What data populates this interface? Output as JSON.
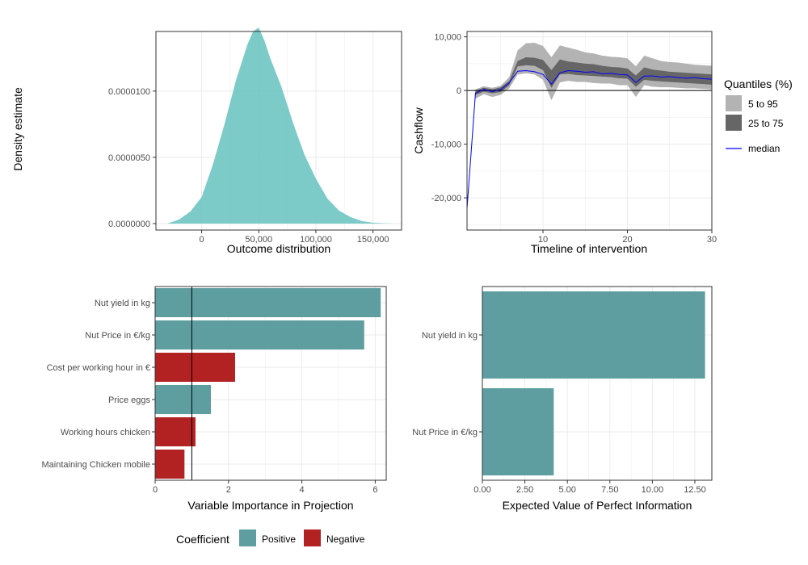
{
  "chart_data": [
    {
      "type": "area",
      "xlabel": "Outcome distribution",
      "ylabel": "Density estimate",
      "xlim": [
        -40000,
        175000
      ],
      "ylim": [
        0,
        1.45e-05
      ],
      "x_ticks": [
        0,
        50000,
        100000,
        150000
      ],
      "x_tick_labels": [
        "0",
        "50,000",
        "100,000",
        "150,000"
      ],
      "y_ticks": [
        0,
        5e-06,
        1e-05
      ],
      "y_tick_labels": [
        "0.0000000",
        "0.0000050",
        "0.0000100"
      ],
      "x": [
        -30000,
        -20000,
        -10000,
        0,
        10000,
        20000,
        30000,
        40000,
        45000,
        50000,
        55000,
        60000,
        70000,
        80000,
        90000,
        100000,
        110000,
        120000,
        130000,
        140000,
        150000,
        160000,
        168000
      ],
      "y": [
        0,
        3e-07,
        9e-07,
        2e-06,
        4.5e-06,
        7.5e-06,
        1.08e-05,
        1.35e-05,
        1.45e-05,
        1.48e-05,
        1.38e-05,
        1.25e-05,
        1.03e-05,
        7.6e-06,
        5.2e-06,
        3.4e-06,
        1.9e-06,
        1e-06,
        5e-07,
        2e-07,
        6e-08,
        2e-08,
        0
      ],
      "color": "#66c2c0"
    },
    {
      "type": "area",
      "xlabel": "Timeline of intervention",
      "ylabel": "Cashflow",
      "xlim": [
        1,
        30
      ],
      "ylim": [
        -26000,
        11000
      ],
      "x_ticks": [
        10,
        20,
        30
      ],
      "x_tick_labels": [
        "10",
        "20",
        "30"
      ],
      "y_ticks": [
        -20000,
        -10000,
        0,
        10000
      ],
      "y_tick_labels": [
        "-20,000",
        "-10,000",
        "0",
        "10,000"
      ],
      "legend_title": "Quantiles (%)",
      "legend_position": "right",
      "x": [
        1,
        2,
        3,
        4,
        5,
        6,
        7,
        8,
        9,
        10,
        11,
        12,
        13,
        14,
        15,
        16,
        17,
        18,
        19,
        20,
        21,
        22,
        23,
        24,
        25,
        26,
        27,
        28,
        29,
        30
      ],
      "series": [
        {
          "name": "5 to 95",
          "lower": [
            -22000,
            -1500,
            -700,
            -1200,
            -800,
            400,
            3000,
            3200,
            3000,
            2000,
            -1800,
            1500,
            1800,
            1600,
            1600,
            1400,
            1300,
            1300,
            1000,
            1000,
            -1200,
            1000,
            700,
            600,
            600,
            500,
            400,
            400,
            300,
            200
          ],
          "upper": [
            -22000,
            200,
            800,
            500,
            900,
            2500,
            7500,
            8800,
            8900,
            8300,
            6200,
            8400,
            8000,
            7600,
            7100,
            6900,
            6500,
            6300,
            6200,
            6000,
            4500,
            6500,
            6000,
            5500,
            5300,
            5200,
            5000,
            4800,
            4700,
            4600
          ],
          "color": "#b3b3b3"
        },
        {
          "name": "25 to 75",
          "lower": [
            -22000,
            -800,
            -200,
            -500,
            -300,
            1000,
            4500,
            4700,
            4600,
            3800,
            500,
            3000,
            3100,
            2900,
            2800,
            2700,
            2600,
            2500,
            2300,
            2200,
            700,
            2000,
            1800,
            1700,
            1600,
            1500,
            1400,
            1300,
            1200,
            1100
          ],
          "upper": [
            -22000,
            0,
            500,
            200,
            600,
            1800,
            5500,
            6200,
            6100,
            5700,
            3800,
            5800,
            5400,
            5200,
            5000,
            4900,
            4600,
            4400,
            4300,
            4100,
            2800,
            4300,
            3900,
            3700,
            3500,
            3400,
            3300,
            3200,
            3100,
            3000
          ],
          "color": "#666666"
        },
        {
          "name": "median",
          "values": [
            -22000,
            -500,
            200,
            -200,
            200,
            1400,
            3600,
            3700,
            3500,
            3000,
            1200,
            3300,
            3700,
            3600,
            3400,
            3500,
            3100,
            3200,
            3000,
            2900,
            1500,
            2700,
            2700,
            2500,
            2600,
            2400,
            2300,
            2400,
            2200,
            2100
          ],
          "color": "#0000ff"
        }
      ]
    },
    {
      "type": "bar",
      "orientation": "horizontal",
      "xlabel": "Variable Importance in Projection",
      "ylabel": "",
      "xlim": [
        0,
        6.3
      ],
      "x_ticks": [
        0,
        2,
        4,
        6
      ],
      "x_tick_labels": [
        "0",
        "2",
        "4",
        "6"
      ],
      "reference_line": 1,
      "categories": [
        "Nut yield in kg",
        "Nut Price in €/kg",
        "Cost per working hour in €",
        "Price eggs",
        "Working hours chicken",
        "Maintaining Chicken mobile"
      ],
      "values": [
        6.15,
        5.7,
        2.18,
        1.52,
        1.1,
        0.8
      ],
      "coefficient": [
        "Positive",
        "Positive",
        "Negative",
        "Positive",
        "Negative",
        "Negative"
      ],
      "legend_title": "Coefficient",
      "legend_position": "bottom",
      "legend": [
        {
          "name": "Positive",
          "color": "#5f9ea0"
        },
        {
          "name": "Negative",
          "color": "#b22222"
        }
      ]
    },
    {
      "type": "bar",
      "orientation": "horizontal",
      "xlabel": "Expected Value of Perfect Information",
      "ylabel": "",
      "xlim": [
        0,
        13.5
      ],
      "x_ticks": [
        0,
        2.5,
        5,
        7.5,
        10,
        12.5
      ],
      "x_tick_labels": [
        "0.00",
        "2.50",
        "5.00",
        "7.50",
        "10.00",
        "12.50"
      ],
      "categories": [
        "Nut yield in kg",
        "Nut Price in €/kg"
      ],
      "values": [
        13.1,
        4.2
      ],
      "color": "#5f9ea0"
    }
  ]
}
